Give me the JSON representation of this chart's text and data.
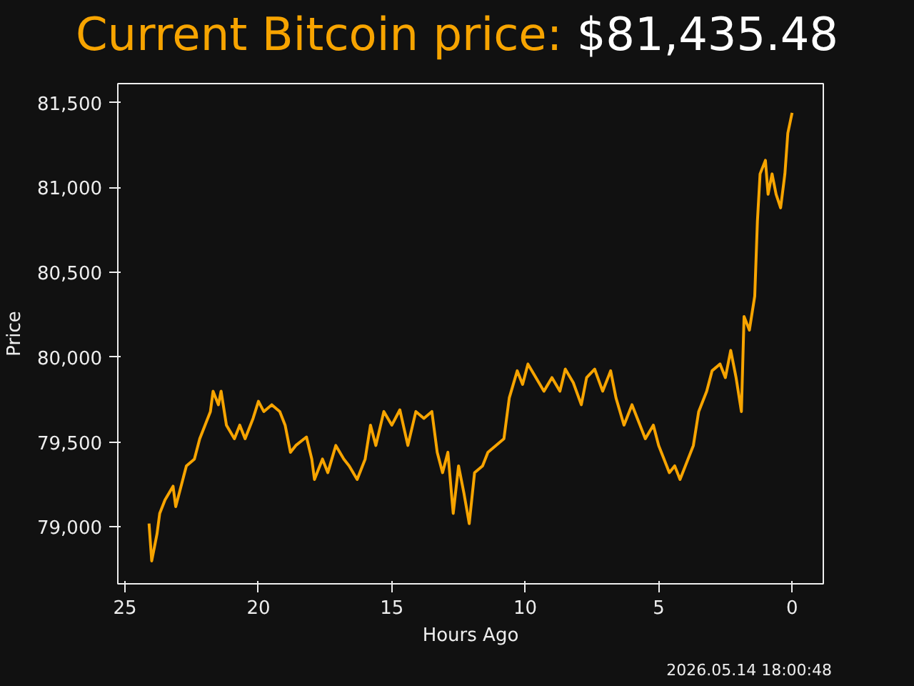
{
  "chart_data": {
    "type": "line",
    "title": "Current Bitcoin price:",
    "subtitle": "$81,435.48",
    "xlabel": "Hours Ago",
    "ylabel": "Price",
    "annotations": [
      "2026.05.14 18:00:48"
    ],
    "x": [
      24.1,
      24.0,
      23.8,
      23.7,
      23.5,
      23.2,
      23.1,
      22.9,
      22.7,
      22.4,
      22.2,
      22.0,
      21.8,
      21.7,
      21.5,
      21.4,
      21.2,
      20.9,
      20.7,
      20.5,
      20.2,
      20.0,
      19.8,
      19.5,
      19.2,
      19.0,
      18.8,
      18.6,
      18.2,
      18.0,
      17.9,
      17.6,
      17.4,
      17.1,
      16.8,
      16.6,
      16.3,
      16.0,
      15.8,
      15.6,
      15.3,
      15.0,
      14.7,
      14.4,
      14.1,
      13.8,
      13.5,
      13.3,
      13.1,
      12.9,
      12.7,
      12.5,
      12.3,
      12.1,
      11.9,
      11.6,
      11.4,
      11.1,
      10.8,
      10.6,
      10.3,
      10.1,
      9.9,
      9.6,
      9.3,
      9.0,
      8.7,
      8.5,
      8.2,
      7.9,
      7.7,
      7.4,
      7.1,
      6.8,
      6.6,
      6.3,
      6.0,
      5.8,
      5.5,
      5.2,
      5.0,
      4.6,
      4.4,
      4.2,
      3.9,
      3.7,
      3.5,
      3.2,
      3.0,
      2.7,
      2.5,
      2.3,
      2.1,
      1.9,
      1.8,
      1.6,
      1.4,
      1.3,
      1.2,
      1.0,
      0.9,
      0.75,
      0.6,
      0.43,
      0.27,
      0.16,
      0.0
    ],
    "series": [
      {
        "color": "#f7a400",
        "values": [
          79020,
          78800,
          78960,
          79080,
          79160,
          79240,
          79120,
          79240,
          79360,
          79400,
          79520,
          79600,
          79680,
          79800,
          79720,
          79800,
          79600,
          79520,
          79600,
          79520,
          79640,
          79740,
          79680,
          79720,
          79680,
          79600,
          79440,
          79480,
          79530,
          79400,
          79280,
          79400,
          79320,
          79480,
          79400,
          79360,
          79280,
          79400,
          79600,
          79480,
          79680,
          79600,
          79690,
          79480,
          79680,
          79640,
          79680,
          79440,
          79320,
          79440,
          79080,
          79360,
          79200,
          79020,
          79320,
          79360,
          79440,
          79480,
          79520,
          79760,
          79920,
          79840,
          79960,
          79880,
          79800,
          79880,
          79800,
          79930,
          79850,
          79720,
          79880,
          79930,
          79800,
          79920,
          79760,
          79600,
          79720,
          79640,
          79520,
          79600,
          79480,
          79320,
          79360,
          79280,
          79400,
          79480,
          79680,
          79800,
          79920,
          79960,
          79880,
          80040,
          79880,
          79680,
          80240,
          80160,
          80360,
          80800,
          81080,
          81160,
          80960,
          81080,
          80960,
          80880,
          81080,
          81320,
          81440
        ]
      }
    ],
    "xlim": [
      25.27,
      -1.17
    ],
    "ylim": [
      78665,
      81612
    ],
    "xticks": [
      25,
      20,
      15,
      10,
      5,
      0
    ],
    "yticks": [
      {
        "value": 79000,
        "label": "79,000"
      },
      {
        "value": 79500,
        "label": "79,500"
      },
      {
        "value": 80000,
        "label": "80,000"
      },
      {
        "value": 80500,
        "label": "80,500"
      },
      {
        "value": 81000,
        "label": "81,000"
      },
      {
        "value": 81500,
        "label": "81,500"
      }
    ],
    "grid": false,
    "line_style": "solid",
    "marker": "none"
  }
}
